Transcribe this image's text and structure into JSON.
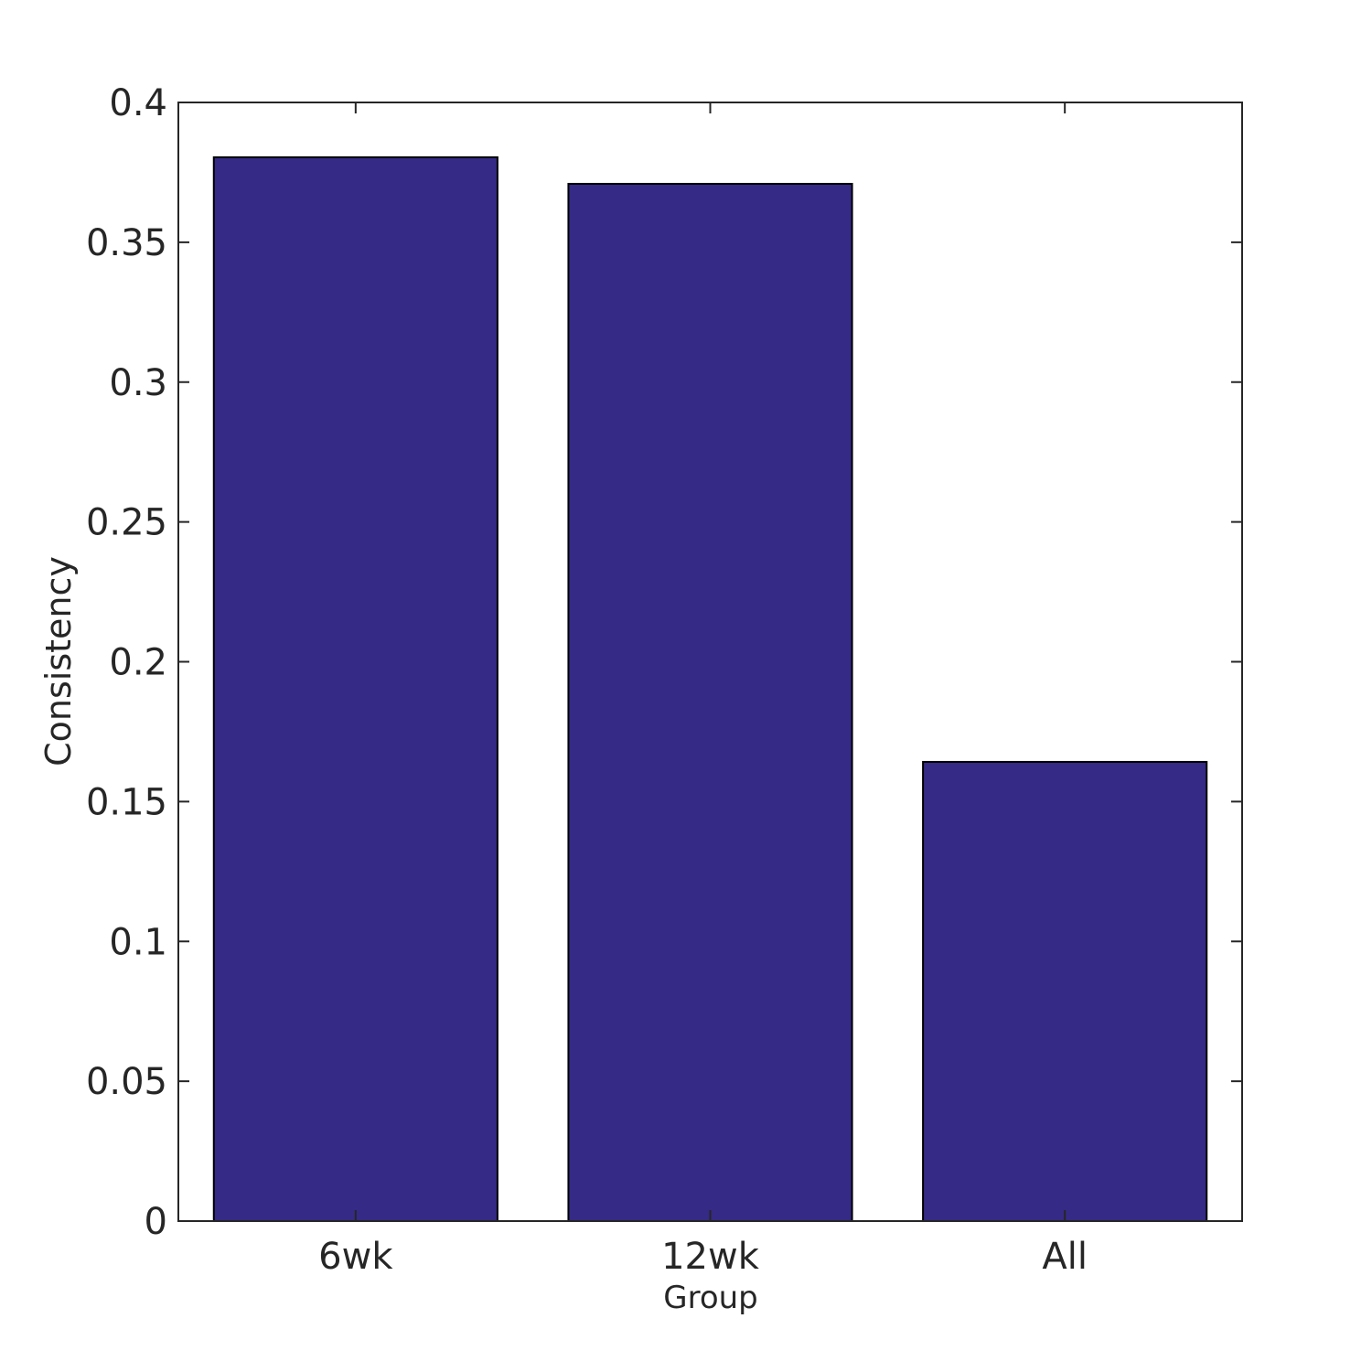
{
  "chart_data": {
    "type": "bar",
    "categories": [
      "6wk",
      "12wk",
      "All"
    ],
    "values": [
      0.3804,
      0.3709,
      0.1642
    ],
    "title": "",
    "xlabel": "Group",
    "ylabel": "Consistency",
    "ylim": [
      0,
      0.4
    ],
    "yticks": [
      0,
      0.05,
      0.1,
      0.15,
      0.2,
      0.25,
      0.3,
      0.35,
      0.4
    ],
    "ytick_labels": [
      "0",
      "0.05",
      "0.1",
      "0.15",
      "0.2",
      "0.25",
      "0.3",
      "0.35",
      "0.4"
    ],
    "grid": false,
    "bar_color": "#352a85",
    "edge_color": "#000000"
  }
}
